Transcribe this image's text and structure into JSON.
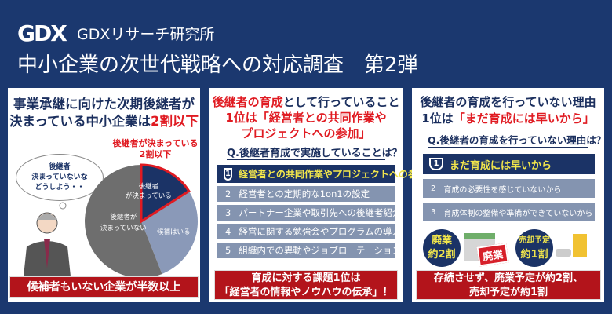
{
  "header": {
    "logo": "GDX",
    "brand": "GDXリサーチ研究所",
    "title": "中小企業の次世代戦略への対応調査　第2弾"
  },
  "panel1": {
    "title_line1": "事業承継に向けた次期後継者が",
    "title_line2_a": "決まっている中小企業は",
    "title_line2_b": "2割以下",
    "callout_line1": "後継者が決まっている",
    "callout_line2": "2割以下",
    "thought_line1": "後継者",
    "thought_line2": "決まっていないな",
    "thought_line3": "どうしよう・・",
    "footer": "候補者もいない企業が半数以上"
  },
  "chart_data": {
    "type": "pie",
    "slices": [
      {
        "label": "後継者が決まっている",
        "value": 16,
        "color": "#1b3366"
      },
      {
        "label": "候補はいる",
        "value": 28,
        "color": "#8a99b8"
      },
      {
        "label": "後継者が決まっていない",
        "value": 56,
        "color": "#6e6e6e"
      }
    ],
    "slice_labels": {
      "decided_1": "後継者",
      "decided_2": "が決まっている",
      "candidate": "候補はいる",
      "none_1": "後継者が",
      "none_2": "決まっていない"
    }
  },
  "panel2": {
    "title_line1_a": "後継者の育成",
    "title_line1_b": "として行っていること",
    "title_line2": "1位は「経営者との共同作業や",
    "title_line3": "プロジェクトへの参加」",
    "question": "Q.後継者育成で実施していることは？",
    "items": [
      {
        "rank": "1",
        "label": "経営者との共同作業やプロジェクトへの参加"
      },
      {
        "rank": "2",
        "label": "経営者との定期的な1on1の設定"
      },
      {
        "rank": "3",
        "label": "パートナー企業や取引先への後継者紹介"
      },
      {
        "rank": "4",
        "label": "経営に関する勉強会やプログラムの導入"
      },
      {
        "rank": "5",
        "label": "組織内での異動やジョブローテーション"
      }
    ],
    "footer_line1": "育成に対する課題1位は",
    "footer_line2": "「経営者の情報やノウハウの伝承」！"
  },
  "panel3": {
    "title_line1": "後継者の育成を行っていない理由",
    "title_line2_a": "1位は",
    "title_line2_b": "「まだ育成には早いから」",
    "question": "Q.後継者の育成を行っていない理由は？",
    "items": [
      {
        "rank": "1",
        "label": "まだ育成には早いから"
      },
      {
        "rank": "2",
        "label": "育成の必要性を感じていないから"
      },
      {
        "rank": "3",
        "label": "育成体制の整備や準備ができていないから"
      }
    ],
    "badge1_line1": "廃業",
    "badge1_line2": "約2割",
    "sign": "廃業",
    "badge2_line1": "売却予定",
    "badge2_line2": "約1割",
    "footer_line1": "存続させず、廃業予定が約2割、",
    "footer_line2": "売却予定が約1割"
  }
}
